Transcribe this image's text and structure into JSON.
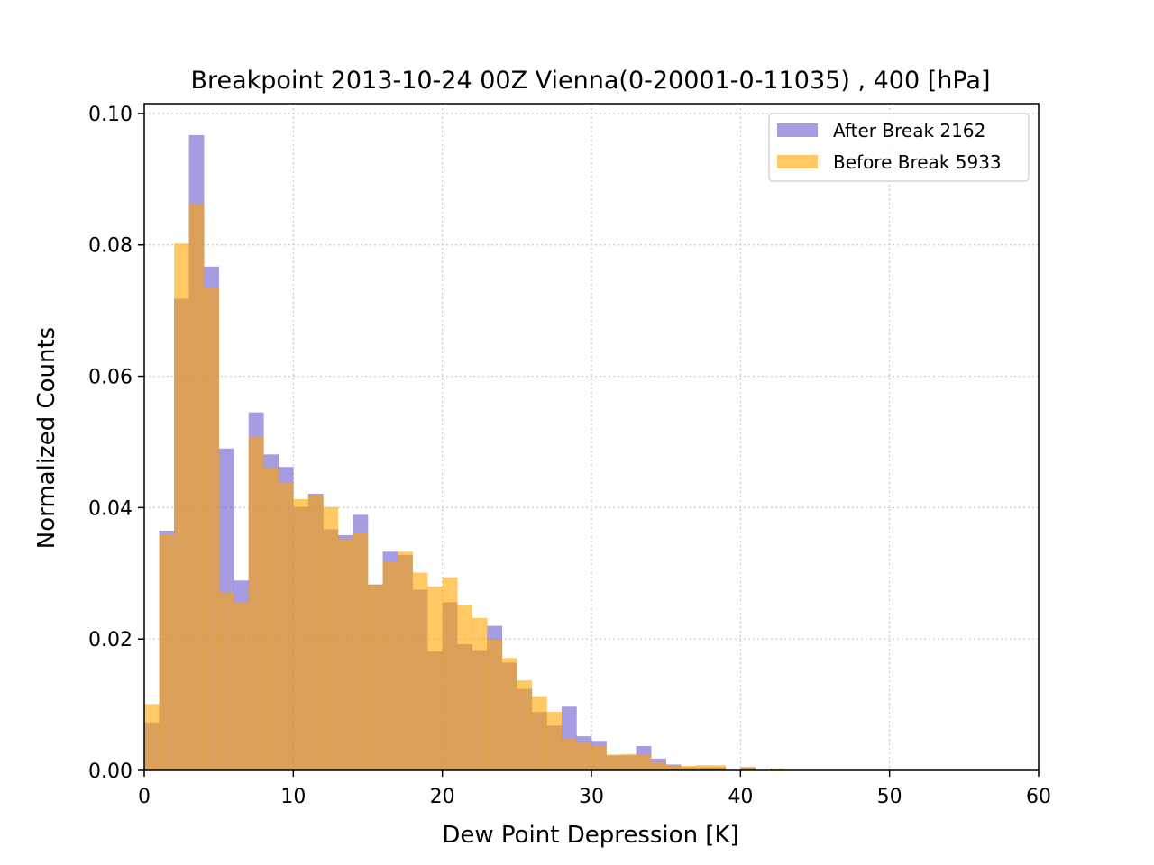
{
  "chart_data": {
    "type": "bar",
    "title": "Breakpoint 2013-10-24 00Z Vienna(0-20001-0-11035) , 400 [hPa]",
    "xlabel": "Dew Point Depression [K]",
    "ylabel": "Normalized Counts",
    "xlim": [
      0,
      60
    ],
    "ylim": [
      0,
      0.1015
    ],
    "xticks": [
      0,
      10,
      20,
      30,
      40,
      50,
      60
    ],
    "xtick_labels": [
      "0",
      "10",
      "20",
      "30",
      "40",
      "50",
      "60"
    ],
    "yticks": [
      0.0,
      0.02,
      0.04,
      0.06,
      0.08,
      0.1
    ],
    "ytick_labels": [
      "0.00",
      "0.02",
      "0.04",
      "0.06",
      "0.08",
      "0.10"
    ],
    "grid": true,
    "legend_position": "top-right",
    "bin_width": 1.0,
    "bin_start": 0,
    "series": [
      {
        "name": "After Break 2162",
        "color": "#6a5acd",
        "values": [
          0.0073,
          0.0365,
          0.0718,
          0.0967,
          0.0767,
          0.049,
          0.0289,
          0.0545,
          0.0481,
          0.0462,
          0.0401,
          0.0421,
          0.0367,
          0.0358,
          0.0389,
          0.0283,
          0.0333,
          0.0328,
          0.0275,
          0.0181,
          0.0256,
          0.0192,
          0.0183,
          0.022,
          0.0164,
          0.0124,
          0.0089,
          0.0068,
          0.0097,
          0.0052,
          0.0045,
          0.0023,
          0.0023,
          0.0037,
          0.0018,
          0.0009,
          0.0005,
          0.0005,
          0.0005,
          0.0,
          0.0005,
          0.0,
          0.0,
          0.0,
          0.0,
          0.0,
          0.0,
          0.0,
          0.0,
          0.0,
          0.0,
          0.0,
          0.0,
          0.0,
          0.0,
          0.0,
          0.0,
          0.0,
          0.0,
          0.0
        ]
      },
      {
        "name": "Before Break 5933",
        "color": "#ffa500",
        "values": [
          0.0101,
          0.0359,
          0.0802,
          0.0862,
          0.0735,
          0.0271,
          0.0256,
          0.0508,
          0.0461,
          0.0438,
          0.0413,
          0.0419,
          0.0401,
          0.0352,
          0.0362,
          0.0283,
          0.0317,
          0.0333,
          0.0301,
          0.028,
          0.0294,
          0.0252,
          0.0232,
          0.0199,
          0.0171,
          0.0137,
          0.0113,
          0.0089,
          0.0049,
          0.0042,
          0.0038,
          0.0024,
          0.0025,
          0.0024,
          0.0012,
          0.0008,
          0.0007,
          0.0008,
          0.0008,
          0.0,
          0.0004,
          0.0,
          0.0003,
          0.0,
          0.0,
          0.0,
          0.0,
          0.0,
          0.0,
          0.0,
          0.0,
          0.0,
          0.0,
          0.0,
          0.0,
          0.0,
          0.0,
          0.0,
          0.0,
          0.0
        ]
      }
    ]
  }
}
